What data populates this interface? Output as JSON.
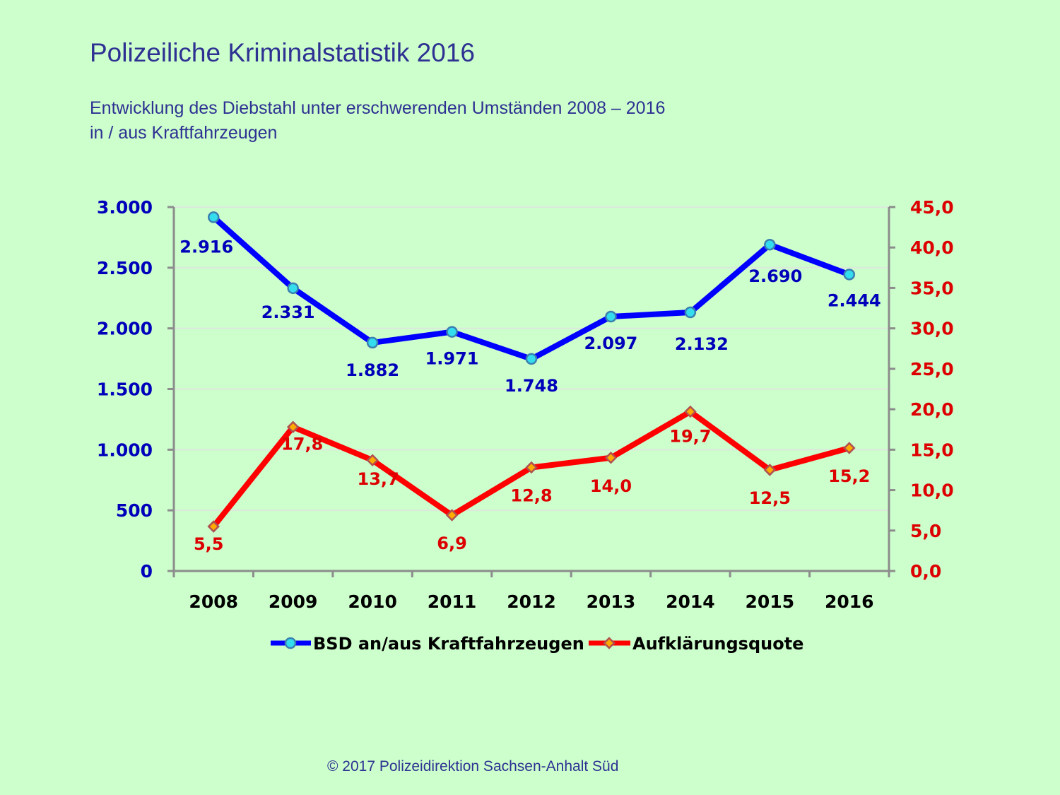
{
  "header": {
    "title": "Polizeiliche Kriminalstatistik 2016",
    "subtitle_line1": "Entwicklung des Diebstahl unter erschwerenden Umständen  2008 – 2016",
    "subtitle_line2": "in / aus Kraftfahrzeugen"
  },
  "footer": {
    "copyright": "© 2017 Polizeidirektion Sachsen-Anhalt Süd"
  },
  "colors": {
    "background": "#ccffcc",
    "series1": "#0000ff",
    "series1_marker": "#33ddee",
    "series2": "#ff0000",
    "series2_marker": "#ffaa00",
    "left_axis_text": "#0000bb",
    "right_axis_text": "#dd0000",
    "title": "#2e3192"
  },
  "chart_data": {
    "type": "line",
    "title": "Polizeiliche Kriminalstatistik 2016",
    "categories": [
      "2008",
      "2009",
      "2010",
      "2011",
      "2012",
      "2013",
      "2014",
      "2015",
      "2016"
    ],
    "series": [
      {
        "name": "BSD an/aus Kraftfahrzeugen",
        "axis": "left",
        "values": [
          2916,
          2331,
          1882,
          1971,
          1748,
          2097,
          2132,
          2690,
          2444
        ],
        "labels": [
          "2.916",
          "2.331",
          "1.882",
          "1.971",
          "1.748",
          "2.097",
          "2.132",
          "2.690",
          "2.444"
        ],
        "marker": "circle"
      },
      {
        "name": "Aufklärungsquote",
        "axis": "right",
        "values": [
          5.5,
          17.8,
          13.7,
          6.9,
          12.8,
          14.0,
          19.7,
          12.5,
          15.2
        ],
        "labels": [
          "5,5",
          "17,8",
          "13,7",
          "6,9",
          "12,8",
          "14,0",
          "19,7",
          "12,5",
          "15,2"
        ],
        "marker": "diamond"
      }
    ],
    "y_left": {
      "range": [
        0,
        3000
      ],
      "ticks": [
        "0",
        "500",
        "1.000",
        "1.500",
        "2.000",
        "2.500",
        "3.000"
      ],
      "tick_values": [
        0,
        500,
        1000,
        1500,
        2000,
        2500,
        3000
      ]
    },
    "y_right": {
      "range": [
        0,
        45
      ],
      "ticks": [
        "0,0",
        "5,0",
        "10,0",
        "15,0",
        "20,0",
        "25,0",
        "30,0",
        "35,0",
        "40,0",
        "45,0"
      ],
      "tick_values": [
        0,
        5,
        10,
        15,
        20,
        25,
        30,
        35,
        40,
        45
      ]
    },
    "grid": true,
    "legend": "bottom"
  }
}
